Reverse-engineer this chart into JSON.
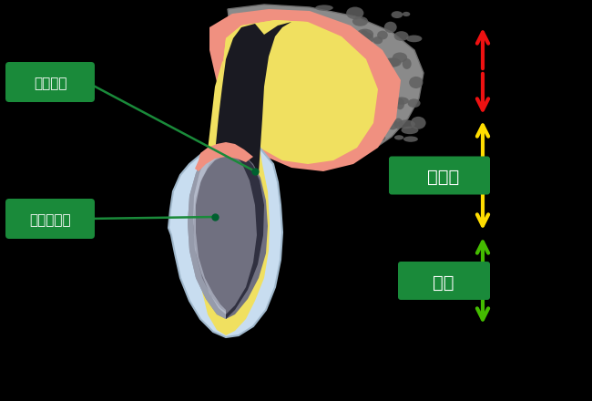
{
  "background_color": "#000000",
  "labels": {
    "post_ana": "ポスト孔",
    "ferrule": "フェルール",
    "post": "ポスト",
    "core": "コア"
  },
  "label_bg_color": "#1a8a3a",
  "label_text_color": "#ffffff",
  "arrow_colors": {
    "red": "#ee1111",
    "yellow": "#ffdd00",
    "green": "#44bb00"
  },
  "colors": {
    "bone": "#8a8a8a",
    "bone_spot": "#606060",
    "gum": "#f09080",
    "dentin": "#f0e060",
    "dentin_light": "#fffff0",
    "canal_dark": "#282828",
    "crown_outer": "#c8ddf0",
    "crown_inner": "#8898b0",
    "metal_dark": "#303040",
    "metal_mid": "#707080",
    "metal_light": "#b0b8c8"
  }
}
